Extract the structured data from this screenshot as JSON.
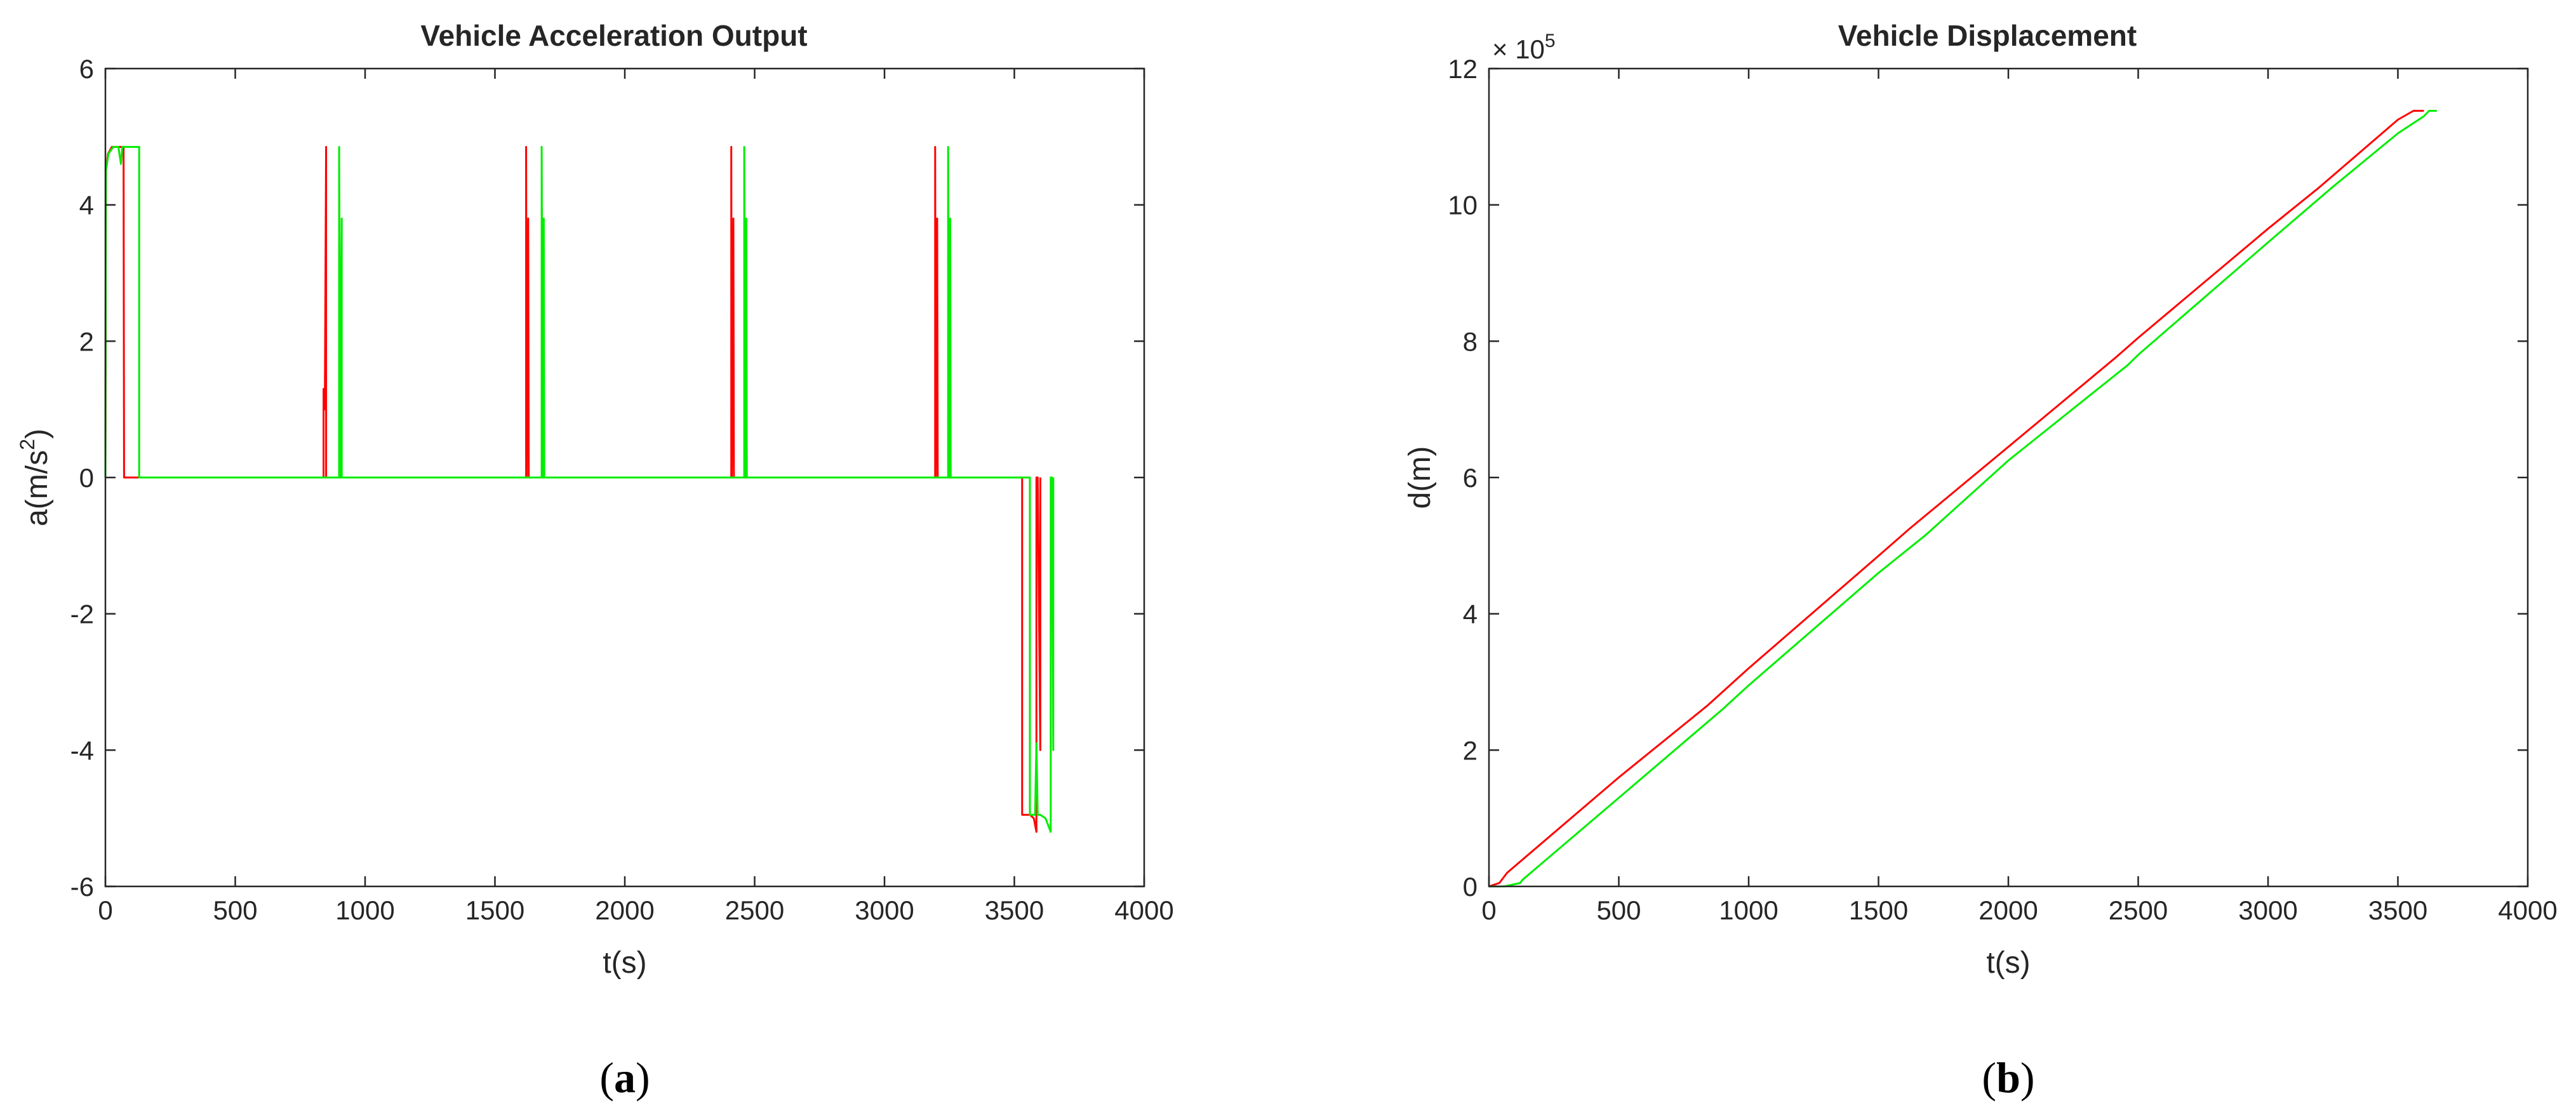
{
  "chart_data": [
    {
      "type": "line",
      "title": "Vehicle Acceleration Output",
      "xlabel": "t(s)",
      "ylabel_base": "a(m/s",
      "ylabel_sup": "2",
      "ylabel_close": ")",
      "caption_open": "(",
      "caption_letter": "a",
      "caption_close": ")",
      "xlim": [
        0,
        4000
      ],
      "ylim": [
        -6,
        6
      ],
      "xticks": [
        "0",
        "500",
        "1000",
        "1500",
        "2000",
        "2500",
        "3000",
        "3500",
        "4000"
      ],
      "yticks": [
        "-6",
        "-4",
        "-2",
        "0",
        "2",
        "4",
        "6"
      ],
      "grid": false,
      "series": [
        {
          "color": "#ff0000",
          "x": [
            0,
            2,
            10,
            25,
            45,
            70,
            72,
            72,
            140,
            140,
            840,
            840,
            845,
            850,
            850,
            855,
            860,
            860,
            1620,
            1620,
            1622,
            1628,
            1630,
            1630,
            2410,
            2410,
            2412,
            2418,
            2420,
            2420,
            3195,
            3195,
            3197,
            3203,
            3205,
            3205,
            3530,
            3530,
            3545,
            3560,
            3575,
            3585,
            3585,
            3590,
            3600,
            3600
          ],
          "y": [
            0,
            4.5,
            4.75,
            4.85,
            4.85,
            4.85,
            0,
            0,
            0,
            0,
            0,
            1.3,
            1.0,
            4.85,
            0,
            0,
            0,
            0,
            0,
            4.85,
            0,
            3.8,
            0,
            0,
            0,
            4.85,
            0,
            3.8,
            0,
            0,
            0,
            4.85,
            0,
            3.8,
            0,
            0,
            0,
            -4.95,
            -4.95,
            -4.95,
            -5.0,
            -5.2,
            0,
            0,
            -4.0,
            0
          ]
        },
        {
          "color": "#00ee00",
          "x": [
            0,
            2,
            12,
            30,
            50,
            60,
            65,
            70,
            80,
            130,
            130,
            900,
            900,
            905,
            910,
            910,
            1680,
            1680,
            1684,
            1688,
            1690,
            1690,
            2460,
            2460,
            2464,
            2468,
            2470,
            2470,
            3245,
            3245,
            3249,
            3253,
            3255,
            3255,
            3560,
            3560,
            3580,
            3585,
            3590,
            3600,
            3620,
            3640,
            3640,
            3645,
            3650,
            3650
          ],
          "y": [
            0,
            4.5,
            4.75,
            4.85,
            4.85,
            4.6,
            4.85,
            4.85,
            4.85,
            4.85,
            0,
            0,
            4.85,
            0,
            3.8,
            0,
            0,
            4.85,
            0,
            3.8,
            0,
            0,
            0,
            4.85,
            0,
            3.8,
            0,
            0,
            0,
            4.85,
            0,
            3.8,
            0,
            0,
            0,
            -4.95,
            -4.95,
            -3.9,
            -4.95,
            -4.95,
            -5.0,
            -5.2,
            0,
            0,
            -4.0,
            0
          ]
        }
      ]
    },
    {
      "type": "line",
      "title": "Vehicle Displacement",
      "xlabel": "t(s)",
      "ylabel": "d(m)",
      "y_exponent_base": "× 10",
      "y_exponent_power": "5",
      "caption_open": "(",
      "caption_letter": "b",
      "caption_close": ")",
      "xlim": [
        0,
        4000
      ],
      "ylim": [
        0,
        12
      ],
      "xticks": [
        "0",
        "500",
        "1000",
        "1500",
        "2000",
        "2500",
        "3000",
        "3500",
        "4000"
      ],
      "yticks": [
        "0",
        "2",
        "4",
        "6",
        "8",
        "10",
        "12"
      ],
      "grid": false,
      "series": [
        {
          "color": "#ff0000",
          "x": [
            0,
            40,
            70,
            500,
            840,
            1000,
            1500,
            1620,
            2000,
            2410,
            2500,
            3000,
            3195,
            3500,
            3560,
            3585,
            3600
          ],
          "y": [
            0,
            0.05,
            0.2,
            1.6,
            2.65,
            3.2,
            4.85,
            5.25,
            6.45,
            7.75,
            8.05,
            9.65,
            10.25,
            11.25,
            11.38,
            11.38,
            11.38
          ]
        },
        {
          "color": "#00ee00",
          "x": [
            0,
            60,
            120,
            130,
            500,
            900,
            1000,
            1500,
            1680,
            2000,
            2460,
            2500,
            3000,
            3245,
            3500,
            3600,
            3620,
            3645,
            3650
          ],
          "y": [
            0,
            0,
            0.05,
            0.1,
            1.3,
            2.6,
            2.95,
            4.6,
            5.15,
            6.25,
            7.65,
            7.8,
            9.45,
            10.25,
            11.05,
            11.3,
            11.38,
            11.38,
            11.38
          ]
        }
      ]
    }
  ]
}
